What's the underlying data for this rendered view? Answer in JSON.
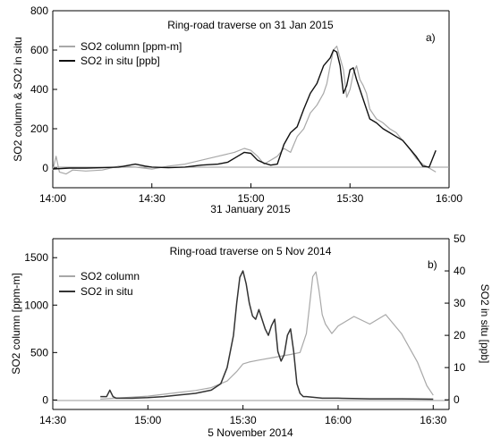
{
  "chart_data": [
    {
      "type": "line",
      "panel_label": "a)",
      "title": "Ring-road traverse on 31 Jan 2015",
      "xlabel": "31 January 2015",
      "ylabel": "SO2 column & SO2 in situ",
      "x_ticks": [
        "14:00",
        "14:30",
        "15:00",
        "15:30",
        "16:00"
      ],
      "x_tick_minutes": [
        0,
        30,
        60,
        90,
        120
      ],
      "xlim_minutes_after_14_00": [
        0,
        120
      ],
      "ylim": [
        -100,
        800
      ],
      "y_ticks": [
        0,
        200,
        400,
        600,
        800
      ],
      "legend_position": "upper-left",
      "series": [
        {
          "name": "SO2 column [ppm-m]",
          "color": "#a8a8a8",
          "x_minutes": [
            0,
            1,
            2,
            4,
            6,
            10,
            15,
            20,
            25,
            30,
            35,
            40,
            45,
            50,
            55,
            58,
            60,
            62,
            64,
            66,
            68,
            70,
            72,
            74,
            76,
            78,
            80,
            82,
            83,
            84,
            85,
            86,
            87,
            88,
            89,
            90,
            91,
            92,
            93,
            94,
            95,
            96,
            98,
            100,
            102,
            104,
            106,
            108,
            110,
            112,
            114,
            116
          ],
          "values": [
            -10,
            60,
            -20,
            -30,
            -10,
            -15,
            -10,
            10,
            5,
            -5,
            10,
            20,
            40,
            60,
            80,
            100,
            90,
            60,
            20,
            40,
            60,
            100,
            80,
            160,
            200,
            280,
            320,
            380,
            430,
            520,
            600,
            620,
            560,
            500,
            360,
            400,
            480,
            520,
            450,
            420,
            380,
            300,
            250,
            230,
            200,
            180,
            140,
            100,
            50,
            20,
            0,
            -20
          ]
        },
        {
          "name": "SO2 in situ [ppb]",
          "color": "#111111",
          "x_minutes": [
            0,
            5,
            10,
            15,
            20,
            25,
            28,
            30,
            35,
            40,
            45,
            50,
            53,
            56,
            58,
            60,
            62,
            64,
            66,
            68,
            70,
            72,
            74,
            76,
            78,
            80,
            82,
            84,
            85,
            86,
            87,
            88,
            89,
            90,
            91,
            92,
            94,
            96,
            98,
            100,
            102,
            104,
            106,
            108,
            110,
            112,
            114,
            116
          ],
          "values": [
            -5,
            0,
            0,
            2,
            5,
            20,
            10,
            5,
            2,
            5,
            15,
            20,
            30,
            60,
            80,
            75,
            40,
            25,
            15,
            20,
            120,
            180,
            210,
            300,
            380,
            430,
            520,
            560,
            600,
            590,
            520,
            380,
            420,
            500,
            510,
            450,
            350,
            250,
            230,
            200,
            180,
            160,
            140,
            100,
            60,
            10,
            5,
            90
          ]
        }
      ]
    },
    {
      "type": "line",
      "panel_label": "b)",
      "title": "Ring-road traverse on 5 Nov 2014",
      "xlabel": "5 November 2014",
      "ylabel": "SO2 column [ppm-m]",
      "ylabel_right": "SO2 in situ [ppb]",
      "x_ticks": [
        "14:30",
        "15:00",
        "15:30",
        "16:00",
        "16:30"
      ],
      "x_tick_minutes": [
        0,
        30,
        60,
        90,
        120
      ],
      "xlim_minutes_after_14_30": [
        0,
        125
      ],
      "ylim": [
        -100,
        1700
      ],
      "y_ticks": [
        0,
        500,
        1000,
        1500
      ],
      "ylim_right": [
        -3,
        50
      ],
      "y_ticks_right": [
        0,
        10,
        20,
        30,
        40,
        50
      ],
      "legend_position": "upper-left",
      "series": [
        {
          "name": "SO2 column",
          "color": "#a8a8a8",
          "axis": "left",
          "x_minutes": [
            15,
            20,
            25,
            30,
            35,
            40,
            45,
            50,
            55,
            58,
            60,
            62,
            65,
            70,
            75,
            78,
            80,
            81,
            82,
            83,
            84,
            85,
            86,
            88,
            90,
            95,
            100,
            105,
            110,
            115,
            118,
            120
          ],
          "values": [
            10,
            20,
            30,
            40,
            60,
            80,
            100,
            130,
            200,
            300,
            380,
            400,
            420,
            450,
            480,
            500,
            700,
            1000,
            1300,
            1350,
            1150,
            900,
            800,
            700,
            780,
            880,
            800,
            900,
            700,
            400,
            150,
            50
          ]
        },
        {
          "name": "SO2 in situ",
          "color": "#333333",
          "axis": "right",
          "x_minutes": [
            15,
            17,
            18,
            19,
            20,
            25,
            30,
            35,
            40,
            45,
            50,
            53,
            55,
            57,
            58,
            59,
            60,
            61,
            62,
            63,
            64,
            65,
            67,
            68,
            69,
            70,
            71,
            72,
            73,
            74,
            75,
            76,
            77,
            78,
            79,
            80,
            85,
            90,
            100,
            110,
            120
          ],
          "values": [
            1,
            1,
            3,
            1,
            0.5,
            0.5,
            0.7,
            1,
            1.5,
            2,
            3,
            5,
            10,
            20,
            30,
            38,
            40,
            36,
            30,
            26,
            25,
            28,
            22,
            20,
            23,
            25,
            15,
            12,
            14,
            20,
            22,
            15,
            5,
            2,
            1,
            1,
            0.5,
            0.5,
            0.3,
            0.3,
            0.2
          ]
        }
      ]
    }
  ]
}
